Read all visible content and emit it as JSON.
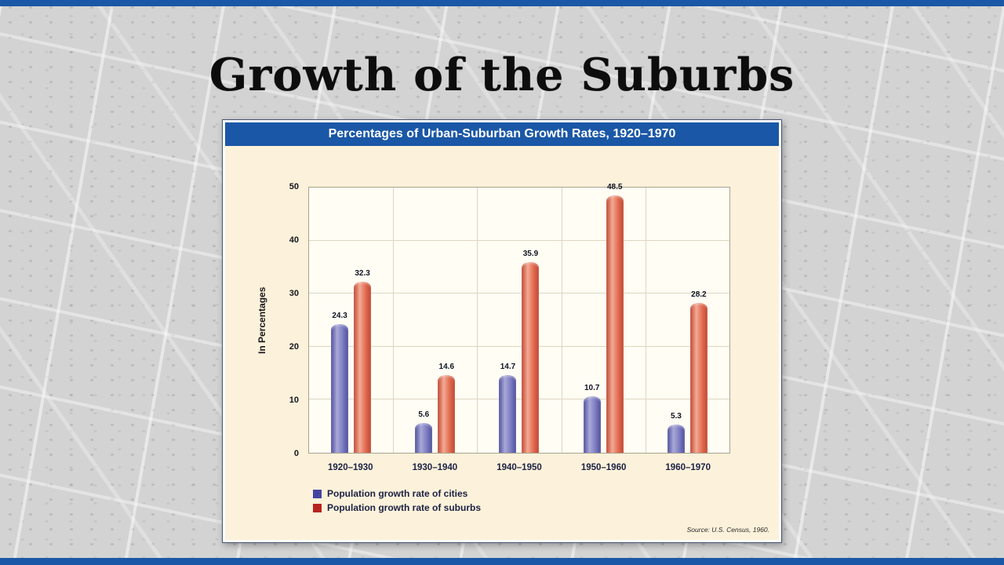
{
  "slide": {
    "title": "Growth of the Suburbs"
  },
  "chart": {
    "header": "Percentages of Urban-Suburban Growth Rates, 1920–1970",
    "source": "Source: U.S. Census, 1960."
  },
  "chart_data": {
    "type": "bar",
    "title": "Percentages of Urban-Suburban Growth Rates, 1920–1970",
    "categories": [
      "1920–1930",
      "1930–1940",
      "1940–1950",
      "1950–1960",
      "1960–1970"
    ],
    "series": [
      {
        "key": "cities",
        "name": "Population growth rate of cities",
        "values": [
          24.3,
          5.6,
          14.7,
          10.7,
          5.3
        ],
        "legend_color": "#4444a0",
        "color_dark": "#4f4f9d",
        "color_light": "#a9a9d8",
        "color_mid": "#7a7ac0"
      },
      {
        "key": "suburbs",
        "name": "Population growth rate of suburbs",
        "values": [
          32.3,
          14.6,
          35.9,
          48.5,
          28.2
        ],
        "legend_color": "#b7231f",
        "color_dark": "#bf4733",
        "color_light": "#f4aa94",
        "color_mid": "#e06a50"
      }
    ],
    "ylabel": "In Percentages",
    "ylim": [
      0,
      50
    ],
    "yticks": [
      0,
      10,
      20,
      30,
      40,
      50
    ],
    "grid": true,
    "legend_position": "bottom-left"
  },
  "colors": {
    "accent_blue": "#1a57a6",
    "panel_background": "#fcf1da",
    "plot_background": "#fffdf4",
    "cities_bar": "#7a7ac0",
    "suburbs_bar": "#e06a50"
  }
}
